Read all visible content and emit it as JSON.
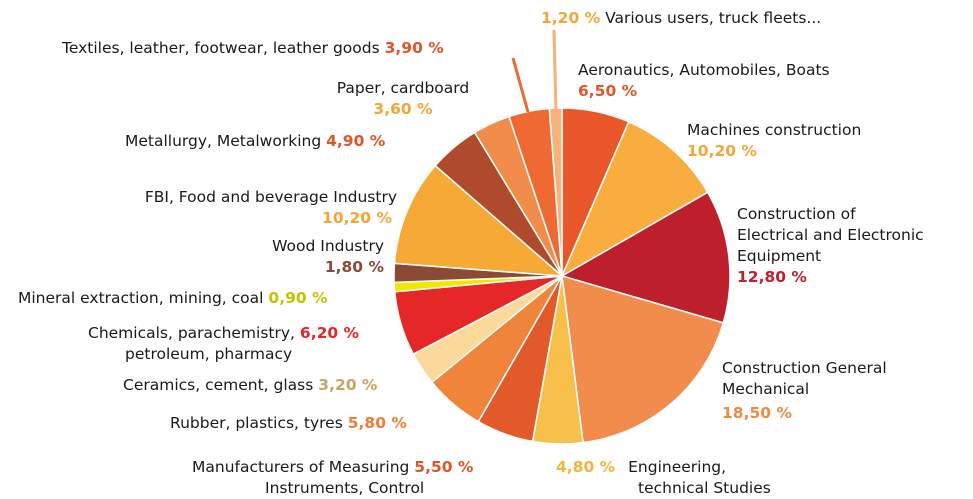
{
  "chart_data": {
    "type": "pie",
    "slices": [
      {
        "name": "Aeronautics, Automobiles, Boats",
        "value_label": "6,50 %",
        "value": 6.5,
        "color": "#e8562a",
        "label_color": "#e0552a"
      },
      {
        "name": "Machines construction",
        "value_label": "10,20 %",
        "value": 10.2,
        "color": "#f8ad3e",
        "label_color": "#f3a636"
      },
      {
        "name": "Construction of Electrical and Electronic Equipment",
        "value_label": "12,80 %",
        "value": 12.8,
        "color": "#be1f2c",
        "label_color": "#c0202e"
      },
      {
        "name": "Construction General Mechanical",
        "value_label": "18,50 %",
        "value": 18.5,
        "color": "#f28c4c",
        "label_color": "#ef8a45"
      },
      {
        "name": "Engineering, technical Studies",
        "value_label": "4,80 %",
        "value": 4.8,
        "color": "#f6c04a",
        "label_color": "#f0b53a"
      },
      {
        "name": "Manufacturers of Measuring Instruments, Control",
        "value_label": "5,50 %",
        "value": 5.5,
        "color": "#e35a2a",
        "label_color": "#e0552a"
      },
      {
        "name": "Rubber, plastics, tyres",
        "value_label": "5,80 %",
        "value": 5.8,
        "color": "#f0843a",
        "label_color": "#ef7d35"
      },
      {
        "name": "Ceramics, cement, glass",
        "value_label": "3,20 %",
        "value": 3.2,
        "color": "#fbd99b",
        "label_color": "#c8a464"
      },
      {
        "name": "Chemicals, parachemistry, petroleum, pharmacy",
        "value_label": "6,20 %",
        "value": 6.2,
        "color": "#e52727",
        "label_color": "#e52727"
      },
      {
        "name": "Mineral extraction, mining, coal",
        "value_label": "0,90 %",
        "value": 0.9,
        "color": "#f4e600",
        "label_color": "#c6c200"
      },
      {
        "name": "Wood Industry",
        "value_label": "1,80 %",
        "value": 1.8,
        "color": "#8b4a36",
        "label_color": "#8b4a36"
      },
      {
        "name": "FBI, Food and beverage Industry",
        "value_label": "10,20 %",
        "value": 10.2,
        "color": "#f7a935",
        "label_color": "#f3a636"
      },
      {
        "name": "Metallurgy, Metalworking",
        "value_label": "4,90 %",
        "value": 4.9,
        "color": "#b04a2c",
        "label_color": "#e0552a"
      },
      {
        "name": "Paper, cardboard",
        "value_label": "3,60 %",
        "value": 3.6,
        "color": "#f28c4a",
        "label_color": "#f3a636"
      },
      {
        "name": "Textiles, leather, footwear, leather goods",
        "value_label": "3,90 %",
        "value": 3.9,
        "color": "#ef6a33",
        "label_color": "#e0552a"
      },
      {
        "name": "Various users, truck fleets...",
        "value_label": "1,20 %",
        "value": 1.2,
        "color": "#f6b27a",
        "label_color": "#f3a636"
      }
    ]
  },
  "labels": {
    "aero": {
      "name": "Aeronautics, Automobiles, Boats",
      "pct": "6,50 %"
    },
    "machines": {
      "name": "Machines construction",
      "pct": "10,20 %"
    },
    "electrical": {
      "line1": "Construction of",
      "line2": "Electrical and Electronic",
      "line3": "Equipment",
      "pct": "12,80 %"
    },
    "general": {
      "line1": "Construction General",
      "line2": "Mechanical",
      "pct": "18,50 %"
    },
    "engineering": {
      "pct": "4,80 %",
      "line1": "Engineering,",
      "line2": "technical Studies"
    },
    "measuring": {
      "line1": "Manufacturers of Measuring",
      "pct": "5,50 %",
      "line2": "Instruments, Control"
    },
    "rubber": {
      "name": "Rubber, plastics, tyres",
      "pct": "5,80 %"
    },
    "ceramics": {
      "name": "Ceramics, cement, glass",
      "pct": "3,20 %"
    },
    "chemicals": {
      "line1": "Chemicals, parachemistry,",
      "pct": "6,20 %",
      "line2": "petroleum, pharmacy"
    },
    "mineral": {
      "name": "Mineral extraction, mining, coal",
      "pct": "0,90 %"
    },
    "wood": {
      "name": "Wood Industry",
      "pct": "1,80 %"
    },
    "food": {
      "name": "FBI, Food and beverage Industry",
      "pct": "10,20 %"
    },
    "metallurgy": {
      "name": "Metallurgy, Metalworking",
      "pct": "4,90 %"
    },
    "paper": {
      "name": "Paper, cardboard",
      "pct": "3,60 %"
    },
    "textiles": {
      "name": "Textiles, leather, footwear, leather goods",
      "pct": "3,90 %"
    },
    "various": {
      "pct": "1,20 %",
      "name": "Various users, truck fleets..."
    }
  }
}
